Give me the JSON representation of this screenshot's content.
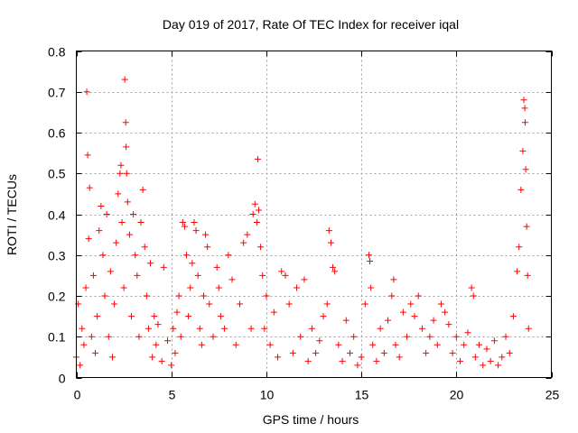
{
  "chart_data": {
    "type": "scatter",
    "title": "Day 019 of 2017, Rate Of TEC Index for receiver iqal",
    "xlabel": "GPS time / hours",
    "ylabel": "ROTI / TECUs",
    "xlim": [
      0,
      25
    ],
    "ylim": [
      0,
      0.8
    ],
    "xticks": [
      0,
      5,
      10,
      15,
      20,
      25
    ],
    "xtick_labels": [
      "0",
      "5",
      "10",
      "15",
      "20",
      "25"
    ],
    "yticks": [
      0,
      0.1,
      0.2,
      0.3,
      0.4,
      0.5,
      0.6,
      0.7,
      0.8
    ],
    "ytick_labels": [
      "0",
      "0.1",
      "0.2",
      "0.3",
      "0.4",
      "0.5",
      "0.6",
      "0.7",
      "0.8"
    ],
    "grid": true,
    "marker": "plus",
    "color": "#ff0000",
    "series": [
      {
        "name": "ROTI",
        "points": [
          [
            0.0,
            0.05
          ],
          [
            0.1,
            0.18
          ],
          [
            0.2,
            0.03
          ],
          [
            0.3,
            0.12
          ],
          [
            0.4,
            0.08
          ],
          [
            0.5,
            0.22
          ],
          [
            0.55,
            0.7
          ],
          [
            0.6,
            0.545
          ],
          [
            0.65,
            0.34
          ],
          [
            0.7,
            0.465
          ],
          [
            0.8,
            0.1
          ],
          [
            0.9,
            0.25
          ],
          [
            1.0,
            0.06
          ],
          [
            1.1,
            0.15
          ],
          [
            1.2,
            0.36
          ],
          [
            1.3,
            0.42
          ],
          [
            1.4,
            0.3
          ],
          [
            1.5,
            0.2
          ],
          [
            1.6,
            0.4
          ],
          [
            1.7,
            0.1
          ],
          [
            1.8,
            0.26
          ],
          [
            1.9,
            0.05
          ],
          [
            2.0,
            0.18
          ],
          [
            2.1,
            0.33
          ],
          [
            2.2,
            0.45
          ],
          [
            2.3,
            0.5
          ],
          [
            2.35,
            0.52
          ],
          [
            2.4,
            0.38
          ],
          [
            2.5,
            0.22
          ],
          [
            2.55,
            0.73
          ],
          [
            2.6,
            0.625
          ],
          [
            2.62,
            0.565
          ],
          [
            2.65,
            0.5
          ],
          [
            2.7,
            0.43
          ],
          [
            2.8,
            0.35
          ],
          [
            2.9,
            0.15
          ],
          [
            3.0,
            0.4
          ],
          [
            3.1,
            0.3
          ],
          [
            3.2,
            0.25
          ],
          [
            3.3,
            0.1
          ],
          [
            3.4,
            0.38
          ],
          [
            3.5,
            0.46
          ],
          [
            3.6,
            0.32
          ],
          [
            3.7,
            0.2
          ],
          [
            3.8,
            0.12
          ],
          [
            3.9,
            0.28
          ],
          [
            4.0,
            0.05
          ],
          [
            4.1,
            0.15
          ],
          [
            4.2,
            0.08
          ],
          [
            4.3,
            0.13
          ],
          [
            4.5,
            0.04
          ],
          [
            4.6,
            0.27
          ],
          [
            4.8,
            0.09
          ],
          [
            5.0,
            0.03
          ],
          [
            5.1,
            0.12
          ],
          [
            5.2,
            0.06
          ],
          [
            5.3,
            0.16
          ],
          [
            5.4,
            0.2
          ],
          [
            5.5,
            0.1
          ],
          [
            5.6,
            0.38
          ],
          [
            5.7,
            0.37
          ],
          [
            5.8,
            0.3
          ],
          [
            5.9,
            0.15
          ],
          [
            6.0,
            0.22
          ],
          [
            6.1,
            0.28
          ],
          [
            6.2,
            0.38
          ],
          [
            6.3,
            0.36
          ],
          [
            6.4,
            0.25
          ],
          [
            6.5,
            0.12
          ],
          [
            6.6,
            0.08
          ],
          [
            6.7,
            0.2
          ],
          [
            6.8,
            0.35
          ],
          [
            6.9,
            0.32
          ],
          [
            7.0,
            0.18
          ],
          [
            7.2,
            0.1
          ],
          [
            7.4,
            0.27
          ],
          [
            7.5,
            0.22
          ],
          [
            7.6,
            0.15
          ],
          [
            7.8,
            0.12
          ],
          [
            8.0,
            0.3
          ],
          [
            8.2,
            0.24
          ],
          [
            8.4,
            0.08
          ],
          [
            8.6,
            0.18
          ],
          [
            8.8,
            0.33
          ],
          [
            9.0,
            0.35
          ],
          [
            9.2,
            0.12
          ],
          [
            9.3,
            0.4
          ],
          [
            9.4,
            0.425
          ],
          [
            9.5,
            0.38
          ],
          [
            9.55,
            0.535
          ],
          [
            9.6,
            0.41
          ],
          [
            9.7,
            0.32
          ],
          [
            9.8,
            0.25
          ],
          [
            9.9,
            0.12
          ],
          [
            10.0,
            0.2
          ],
          [
            10.2,
            0.08
          ],
          [
            10.4,
            0.16
          ],
          [
            10.6,
            0.05
          ],
          [
            10.8,
            0.26
          ],
          [
            11.0,
            0.25
          ],
          [
            11.2,
            0.18
          ],
          [
            11.4,
            0.06
          ],
          [
            11.6,
            0.22
          ],
          [
            11.8,
            0.1
          ],
          [
            12.0,
            0.24
          ],
          [
            12.2,
            0.04
          ],
          [
            12.4,
            0.12
          ],
          [
            12.6,
            0.06
          ],
          [
            12.8,
            0.09
          ],
          [
            13.0,
            0.15
          ],
          [
            13.2,
            0.18
          ],
          [
            13.3,
            0.36
          ],
          [
            13.4,
            0.33
          ],
          [
            13.5,
            0.27
          ],
          [
            13.6,
            0.26
          ],
          [
            13.8,
            0.08
          ],
          [
            14.0,
            0.04
          ],
          [
            14.2,
            0.14
          ],
          [
            14.4,
            0.06
          ],
          [
            14.6,
            0.1
          ],
          [
            14.8,
            0.03
          ],
          [
            15.0,
            0.05
          ],
          [
            15.2,
            0.18
          ],
          [
            15.4,
            0.3
          ],
          [
            15.45,
            0.285
          ],
          [
            15.5,
            0.22
          ],
          [
            15.6,
            0.08
          ],
          [
            15.8,
            0.04
          ],
          [
            16.0,
            0.12
          ],
          [
            16.2,
            0.06
          ],
          [
            16.4,
            0.14
          ],
          [
            16.6,
            0.2
          ],
          [
            16.7,
            0.24
          ],
          [
            16.8,
            0.08
          ],
          [
            17.0,
            0.05
          ],
          [
            17.2,
            0.16
          ],
          [
            17.4,
            0.1
          ],
          [
            17.6,
            0.18
          ],
          [
            17.8,
            0.15
          ],
          [
            18.0,
            0.2
          ],
          [
            18.2,
            0.12
          ],
          [
            18.4,
            0.06
          ],
          [
            18.6,
            0.1
          ],
          [
            18.8,
            0.14
          ],
          [
            19.0,
            0.08
          ],
          [
            19.2,
            0.18
          ],
          [
            19.4,
            0.16
          ],
          [
            19.6,
            0.13
          ],
          [
            19.8,
            0.06
          ],
          [
            20.0,
            0.1
          ],
          [
            20.2,
            0.04
          ],
          [
            20.4,
            0.08
          ],
          [
            20.6,
            0.11
          ],
          [
            20.8,
            0.22
          ],
          [
            20.9,
            0.2
          ],
          [
            21.0,
            0.05
          ],
          [
            21.2,
            0.08
          ],
          [
            21.4,
            0.03
          ],
          [
            21.6,
            0.07
          ],
          [
            21.8,
            0.04
          ],
          [
            22.0,
            0.09
          ],
          [
            22.2,
            0.03
          ],
          [
            22.4,
            0.05
          ],
          [
            22.6,
            0.1
          ],
          [
            22.8,
            0.06
          ],
          [
            23.0,
            0.15
          ],
          [
            23.2,
            0.26
          ],
          [
            23.3,
            0.32
          ],
          [
            23.4,
            0.46
          ],
          [
            23.5,
            0.555
          ],
          [
            23.55,
            0.68
          ],
          [
            23.6,
            0.66
          ],
          [
            23.62,
            0.625
          ],
          [
            23.65,
            0.51
          ],
          [
            23.7,
            0.37
          ],
          [
            23.75,
            0.25
          ],
          [
            23.8,
            0.12
          ]
        ]
      }
    ]
  }
}
